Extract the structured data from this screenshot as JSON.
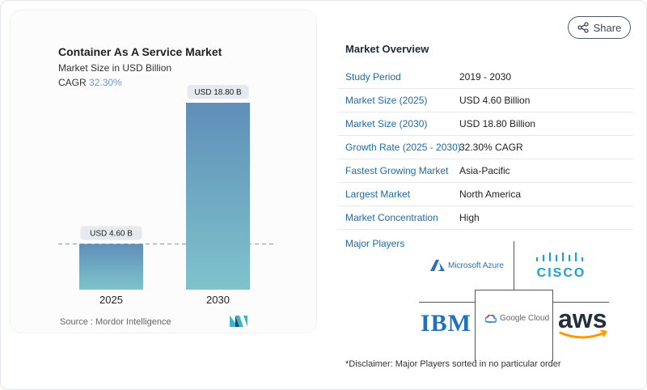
{
  "chart_data": {
    "type": "bar",
    "title": "Container As A Service Market",
    "subtitle": "Market Size in USD Billion",
    "cagr_label": "CAGR",
    "cagr_value": "32.30%",
    "categories": [
      "2025",
      "2030"
    ],
    "values": [
      4.6,
      18.8
    ],
    "data_labels": [
      "USD 4.60 B",
      "USD 18.80 B"
    ],
    "ylim": [
      0,
      18.8
    ],
    "colors": {
      "bar_top": "#5f8fb8",
      "bar_bottom": "#7fc3cc"
    },
    "source": "Source :  Mordor Intelligence"
  },
  "share_label": "Share",
  "overview": {
    "title": "Market Overview",
    "rows": [
      {
        "label": "Study Period",
        "value": "2019 - 2030"
      },
      {
        "label": "Market Size (2025)",
        "value": "USD 4.60 Billion"
      },
      {
        "label": "Market Size (2030)",
        "value": "USD 18.80 Billion"
      },
      {
        "label": "Growth Rate (2025 - 2030)",
        "value": "32.30% CAGR"
      },
      {
        "label": "Fastest Growing Market",
        "value": "Asia-Pacific"
      },
      {
        "label": "Largest Market",
        "value": "North America"
      },
      {
        "label": "Market Concentration",
        "value": "High"
      }
    ],
    "major_players_label": "Major Players",
    "players": [
      "Microsoft Azure",
      "CISCO",
      "IBM",
      "Google Cloud",
      "aws"
    ],
    "disclaimer": "*Disclaimer: Major Players sorted in no particular order"
  }
}
